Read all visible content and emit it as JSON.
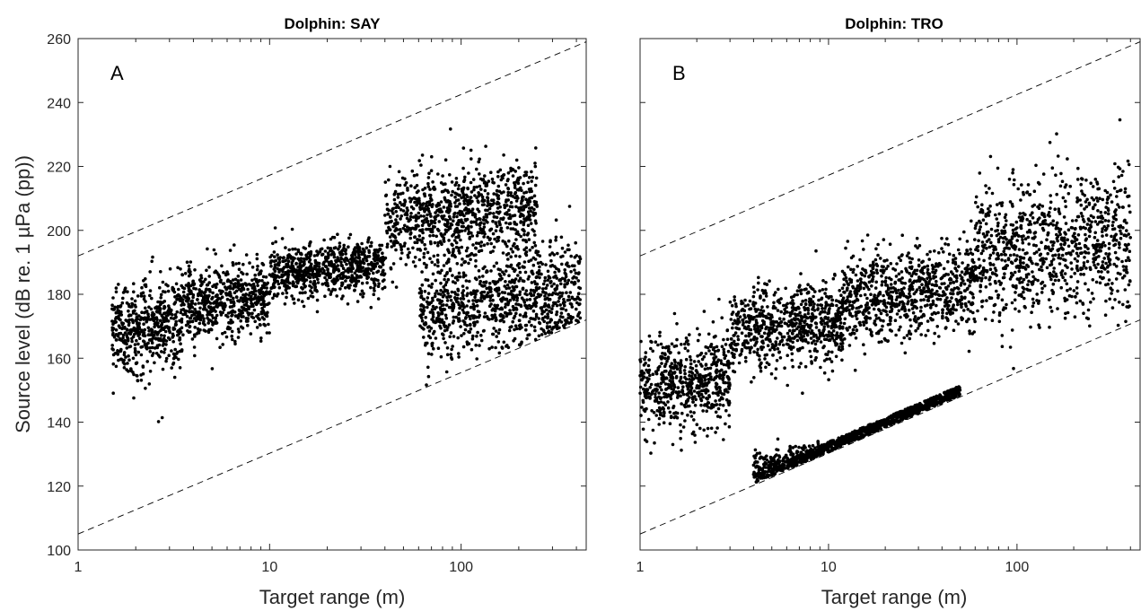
{
  "chart_data": [
    {
      "type": "scatter",
      "title": "Dolphin: SAY",
      "panel_label": "A",
      "xlabel": "Target range (m)",
      "ylabel": "Source level (dB re. 1 µPa (pp))",
      "xscale": "log",
      "xlim": [
        1,
        450
      ],
      "ylim": [
        100,
        260
      ],
      "xticks": [
        1,
        10,
        100
      ],
      "xtick_labels": [
        "1",
        "10",
        "100"
      ],
      "yticks": [
        100,
        120,
        140,
        160,
        180,
        200,
        220,
        240,
        260
      ],
      "ytick_labels": [
        "100",
        "120",
        "140",
        "160",
        "180",
        "200",
        "220",
        "240",
        "260"
      ],
      "grid": false,
      "legend": "none",
      "bounds": [
        {
          "style": "dashed",
          "x": [
            1,
            450
          ],
          "y": [
            192,
            259
          ]
        },
        {
          "style": "dashed",
          "x": [
            1,
            450
          ],
          "y": [
            105,
            172
          ]
        }
      ],
      "clusters": [
        {
          "range": [
            1.5,
            3.5
          ],
          "center_dB": 170,
          "spread_dB": 12
        },
        {
          "range": [
            3.5,
            10
          ],
          "center_dB": 178,
          "spread_dB": 9
        },
        {
          "range": [
            10,
            40
          ],
          "center_dB": 188,
          "spread_dB": 7
        },
        {
          "range": [
            40,
            250
          ],
          "center_dB": 205,
          "spread_dB": 12
        },
        {
          "range": [
            60,
            420
          ],
          "center_dB": 178,
          "spread_dB": 14
        }
      ]
    },
    {
      "type": "scatter",
      "title": "Dolphin: TRO",
      "panel_label": "B",
      "xlabel": "Target range (m)",
      "ylabel": "",
      "xscale": "log",
      "xlim": [
        1,
        450
      ],
      "ylim": [
        100,
        260
      ],
      "xticks": [
        1,
        10,
        100
      ],
      "xtick_labels": [
        "1",
        "10",
        "100"
      ],
      "grid": false,
      "legend": "none",
      "bounds": [
        {
          "style": "dashed",
          "x": [
            1,
            450
          ],
          "y": [
            192,
            259
          ]
        },
        {
          "style": "dashed",
          "x": [
            1,
            450
          ],
          "y": [
            105,
            172
          ]
        }
      ],
      "clusters": [
        {
          "range": [
            1,
            3
          ],
          "center_dB": 152,
          "spread_dB": 12
        },
        {
          "range": [
            3,
            12
          ],
          "center_dB": 170,
          "spread_dB": 10
        },
        {
          "range": [
            12,
            60
          ],
          "center_dB": 180,
          "spread_dB": 12
        },
        {
          "range": [
            60,
            400
          ],
          "center_dB": 195,
          "spread_dB": 18
        },
        {
          "range": [
            4,
            50
          ],
          "center_dB": 128,
          "spread_dB": 6
        }
      ]
    }
  ]
}
